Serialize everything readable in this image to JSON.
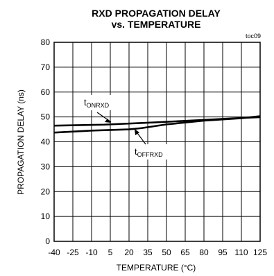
{
  "chart_data": {
    "type": "line",
    "title": [
      "RXD PROPAGATION DELAY",
      "vs. TEMPERATURE"
    ],
    "tag": "toc09",
    "xlabel": "TEMPERATURE (°C)",
    "ylabel": "PROPAGATION DELAY (ns)",
    "xlim": [
      -40,
      125
    ],
    "ylim": [
      0,
      80
    ],
    "xticks": [
      -40,
      -25,
      -10,
      5,
      20,
      35,
      50,
      65,
      80,
      95,
      110,
      125
    ],
    "yticks": [
      0,
      10,
      20,
      30,
      40,
      50,
      60,
      70,
      80
    ],
    "grid": true,
    "series": [
      {
        "name": "tONRXD",
        "name_main": "t",
        "name_sub": "ONRXD",
        "x": [
          -40,
          0,
          40,
          80,
          110,
          125
        ],
        "y": [
          46.5,
          46.9,
          47.8,
          48.8,
          49.6,
          49.9
        ]
      },
      {
        "name": "tOFFRXD",
        "name_main": "t",
        "name_sub": "OFFRXD",
        "x": [
          -40,
          -10,
          20,
          30,
          50,
          80,
          110,
          125
        ],
        "y": [
          43.7,
          44.5,
          45.0,
          45.5,
          47.0,
          48.5,
          49.5,
          50.3
        ]
      }
    ]
  }
}
